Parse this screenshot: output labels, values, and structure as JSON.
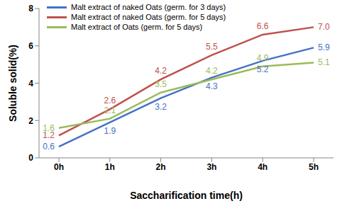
{
  "chart_data": {
    "type": "line",
    "x_label": "Saccharification time(h)",
    "y_label": "Soluble solid(%)",
    "categories": [
      "0h",
      "1h",
      "2h",
      "3h",
      "4h",
      "5h"
    ],
    "series": [
      {
        "name": "Malt extract of naked Oats (germ. for 3 days)",
        "color": "#4472c4",
        "values": [
          0.6,
          1.9,
          3.2,
          4.3,
          5.2,
          5.9
        ],
        "value_labels": [
          "0.6",
          "1.9",
          "3.2",
          "4.3",
          "5.2",
          "5.9"
        ]
      },
      {
        "name": "Malt extract of naked Oats (germ. for 5 days)",
        "color": "#c0504d",
        "values": [
          1.2,
          2.6,
          4.2,
          5.5,
          6.6,
          7
        ],
        "value_labels": [
          "1.2",
          "2.6",
          "4.2",
          "5.5",
          "6.6",
          "7.0"
        ]
      },
      {
        "name": "Malt extract of Oats (germ. for 5 days)",
        "color": "#9bbb59",
        "values": [
          1.6,
          2.1,
          3.5,
          4.2,
          4.9,
          5.1
        ],
        "value_labels": [
          "1.6",
          "2.1",
          "3.5",
          "4.2",
          "4.9",
          "5.1"
        ]
      }
    ],
    "ylim": [
      0,
      8
    ],
    "yticks": [
      0,
      2,
      4,
      6,
      8
    ],
    "grid": false,
    "legend": "upper left",
    "data_labels": true
  }
}
